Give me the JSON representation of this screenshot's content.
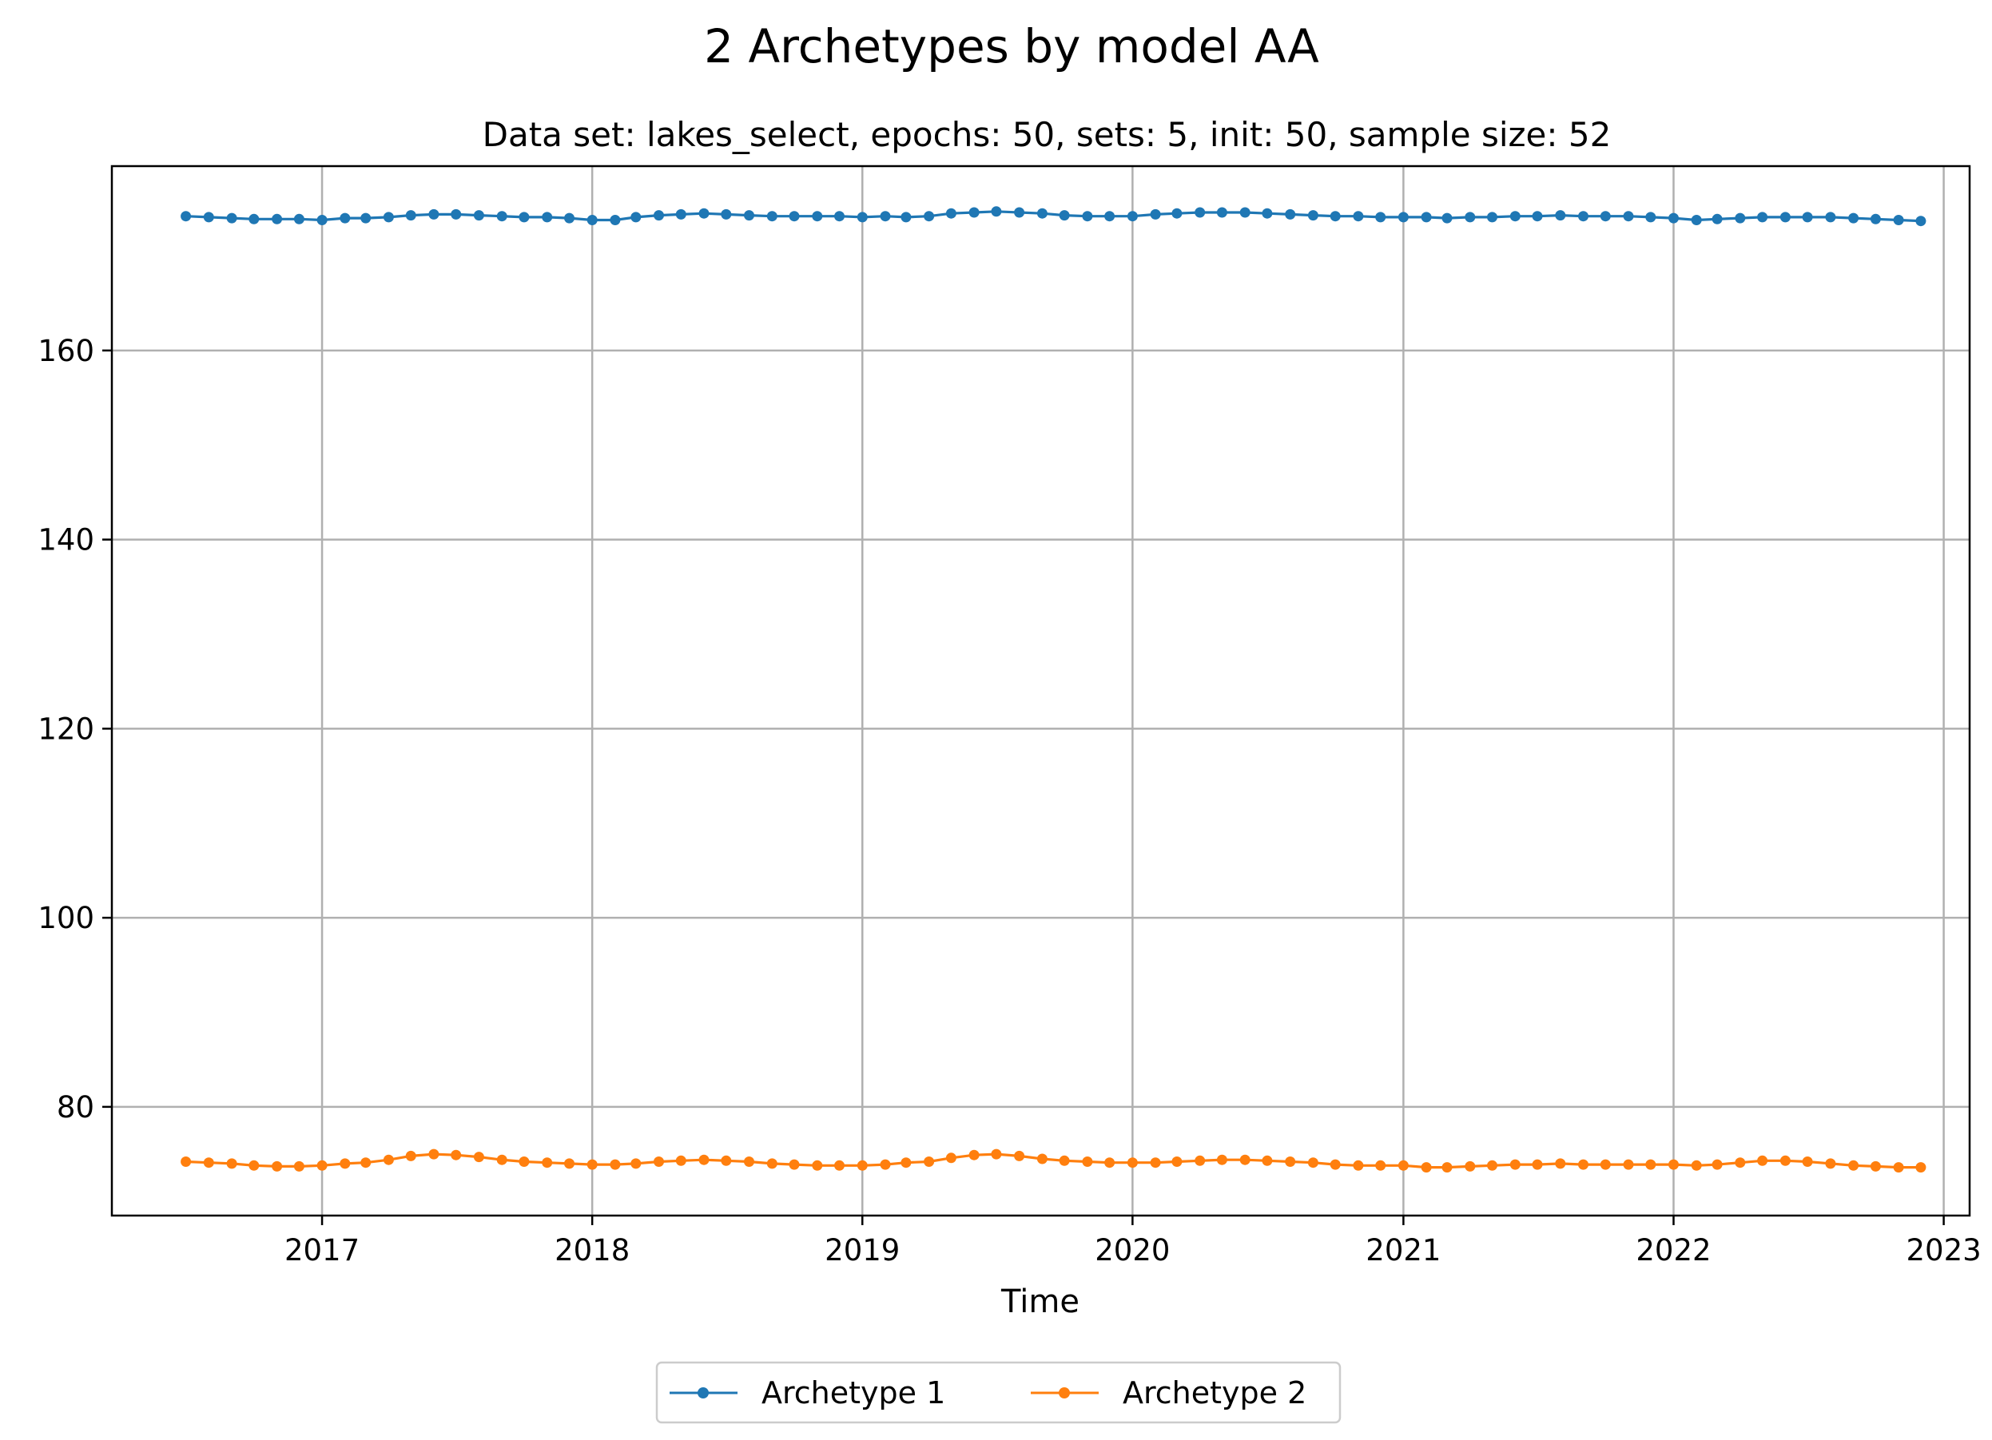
{
  "chart_data": {
    "type": "line",
    "title": "2 Archetypes by model AA",
    "subtitle": "Data set: lakes_select, epochs: 50, sets: 5, init: 50, sample size: 52",
    "xlabel": "Time",
    "ylabel": "",
    "x_ticks": [
      "2017",
      "2018",
      "2019",
      "2020",
      "2021",
      "2022",
      "2023"
    ],
    "y_ticks": [
      80,
      100,
      120,
      140,
      160
    ],
    "xlim": [
      "2016-03-23",
      "2023-02-05"
    ],
    "ylim": [
      68.5,
      179.5
    ],
    "grid": true,
    "legend_position": "bottom-center",
    "x": [
      "2016-07",
      "2016-08",
      "2016-09",
      "2016-10",
      "2016-11",
      "2016-12",
      "2017-01",
      "2017-02",
      "2017-03",
      "2017-04",
      "2017-05",
      "2017-06",
      "2017-07",
      "2017-08",
      "2017-09",
      "2017-10",
      "2017-11",
      "2017-12",
      "2018-01",
      "2018-02",
      "2018-03",
      "2018-04",
      "2018-05",
      "2018-06",
      "2018-07",
      "2018-08",
      "2018-09",
      "2018-10",
      "2018-11",
      "2018-12",
      "2019-01",
      "2019-02",
      "2019-03",
      "2019-04",
      "2019-05",
      "2019-06",
      "2019-07",
      "2019-08",
      "2019-09",
      "2019-10",
      "2019-11",
      "2019-12",
      "2020-01",
      "2020-02",
      "2020-03",
      "2020-04",
      "2020-05",
      "2020-06",
      "2020-07",
      "2020-08",
      "2020-09",
      "2020-10",
      "2020-11",
      "2020-12",
      "2021-01",
      "2021-02",
      "2021-03",
      "2021-04",
      "2021-05",
      "2021-06",
      "2021-07",
      "2021-08",
      "2021-09",
      "2021-10",
      "2021-11",
      "2021-12",
      "2022-01",
      "2022-02",
      "2022-03",
      "2022-04",
      "2022-05",
      "2022-06",
      "2022-07",
      "2022-08",
      "2022-09",
      "2022-10",
      "2022-11",
      "2022-12"
    ],
    "series": [
      {
        "name": "Archetype 1",
        "color": "#1f77b4",
        "values": [
          174.2,
          174.1,
          174.0,
          173.9,
          173.9,
          173.9,
          173.8,
          174.0,
          174.0,
          174.1,
          174.3,
          174.4,
          174.4,
          174.3,
          174.2,
          174.1,
          174.1,
          174.0,
          173.8,
          173.8,
          174.1,
          174.3,
          174.4,
          174.5,
          174.4,
          174.3,
          174.2,
          174.2,
          174.2,
          174.2,
          174.1,
          174.2,
          174.1,
          174.2,
          174.5,
          174.6,
          174.7,
          174.6,
          174.5,
          174.3,
          174.2,
          174.2,
          174.2,
          174.4,
          174.5,
          174.6,
          174.6,
          174.6,
          174.5,
          174.4,
          174.3,
          174.2,
          174.2,
          174.1,
          174.1,
          174.1,
          174.0,
          174.1,
          174.1,
          174.2,
          174.2,
          174.3,
          174.2,
          174.2,
          174.2,
          174.1,
          174.0,
          173.8,
          173.9,
          174.0,
          174.1,
          174.1,
          174.1,
          174.1,
          174.0,
          173.9,
          173.8,
          173.7
        ]
      },
      {
        "name": "Archetype 2",
        "color": "#ff7f0e",
        "values": [
          74.2,
          74.1,
          74.0,
          73.8,
          73.7,
          73.7,
          73.8,
          74.0,
          74.1,
          74.4,
          74.8,
          75.0,
          74.9,
          74.7,
          74.4,
          74.2,
          74.1,
          74.0,
          73.9,
          73.9,
          74.0,
          74.2,
          74.3,
          74.4,
          74.3,
          74.2,
          74.0,
          73.9,
          73.8,
          73.8,
          73.8,
          73.9,
          74.1,
          74.2,
          74.6,
          74.9,
          75.0,
          74.8,
          74.5,
          74.3,
          74.2,
          74.1,
          74.1,
          74.1,
          74.2,
          74.3,
          74.4,
          74.4,
          74.3,
          74.2,
          74.1,
          73.9,
          73.8,
          73.8,
          73.8,
          73.6,
          73.6,
          73.7,
          73.8,
          73.9,
          73.9,
          74.0,
          73.9,
          73.9,
          73.9,
          73.9,
          73.9,
          73.8,
          73.9,
          74.1,
          74.3,
          74.3,
          74.2,
          74.0,
          73.8,
          73.7,
          73.6,
          73.6
        ]
      }
    ]
  }
}
